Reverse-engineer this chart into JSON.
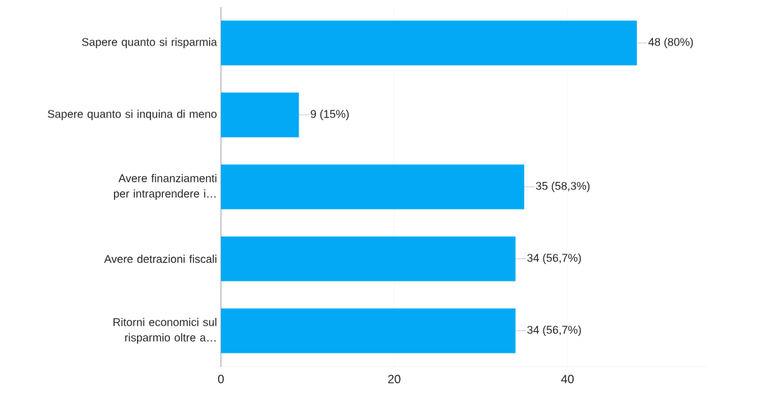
{
  "chart_data": {
    "type": "bar",
    "orientation": "horizontal",
    "categories": [
      "Sapere quanto si risparmia",
      "Sapere quanto si inquina di meno",
      "Avere finanziamenti per intraprendere i…",
      "Avere detrazioni fiscali",
      "Ritorni economici sul risparmio oltre a…"
    ],
    "values": [
      48,
      9,
      35,
      34,
      34
    ],
    "value_labels": [
      "48 (80%)",
      "9 (15%)",
      "35 (58,3%)",
      "34 (56,7%)",
      "34 (56,7%)"
    ],
    "color": "#03a9f4",
    "xlim": [
      0,
      56
    ],
    "xticks": [
      0,
      20,
      40
    ],
    "grid": "x"
  }
}
